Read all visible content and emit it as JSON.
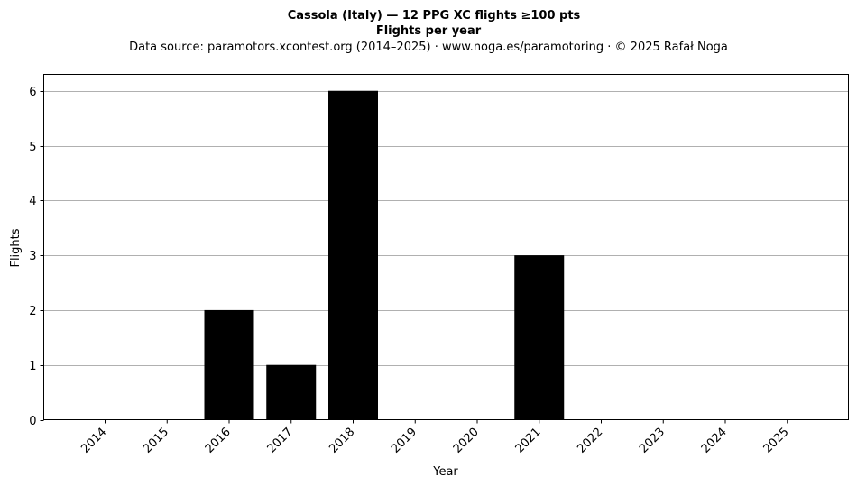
{
  "chart_data": {
    "type": "bar",
    "title": "Cassola (Italy)  —  12 PPG XC flights ≥100 pts",
    "subtitle": "Flights per year",
    "source": "Data source: paramotors.xcontest.org (2014–2025)  ·  www.noga.es/paramotoring  ·  © 2025 Rafał Noga",
    "xlabel": "Year",
    "ylabel": "Flights",
    "categories": [
      "2014",
      "2015",
      "2016",
      "2017",
      "2018",
      "2019",
      "2020",
      "2021",
      "2022",
      "2023",
      "2024",
      "2025"
    ],
    "values": [
      0,
      0,
      2,
      1,
      6,
      0,
      0,
      3,
      0,
      0,
      0,
      0
    ],
    "ylim": [
      0,
      6.3
    ],
    "yticks": [
      0,
      1,
      2,
      3,
      4,
      5,
      6
    ],
    "grid": "y",
    "legend": "none",
    "bar_color": "#000000",
    "grid_color": "#b0b0b0"
  }
}
